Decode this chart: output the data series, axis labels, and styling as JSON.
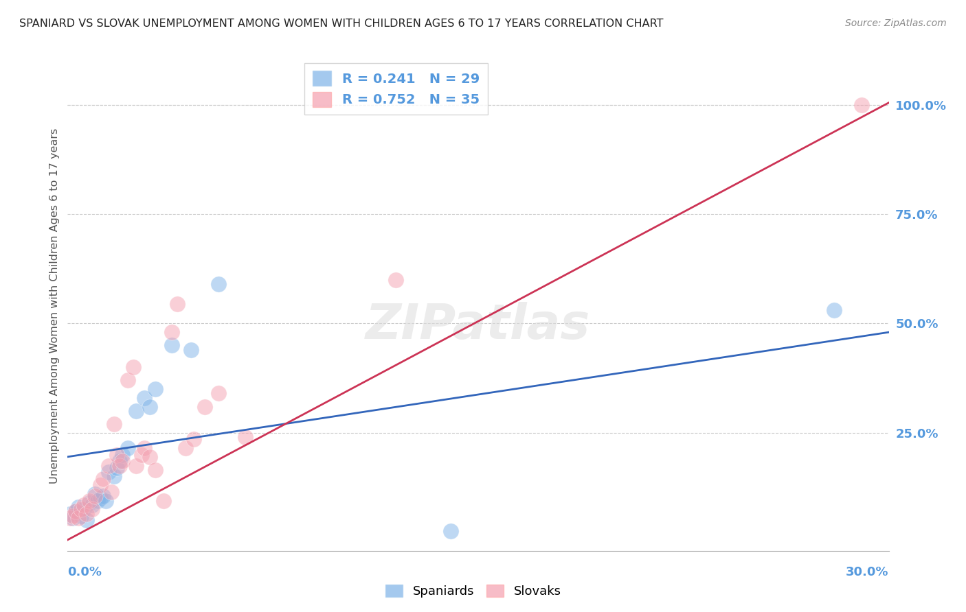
{
  "title": "SPANIARD VS SLOVAK UNEMPLOYMENT AMONG WOMEN WITH CHILDREN AGES 6 TO 17 YEARS CORRELATION CHART",
  "source": "Source: ZipAtlas.com",
  "ylabel": "Unemployment Among Women with Children Ages 6 to 17 years",
  "watermark": "ZIPatlas",
  "legend_spaniard_R": "0.241",
  "legend_spaniard_N": "29",
  "legend_slovak_R": "0.752",
  "legend_slovak_N": "35",
  "blue_color": "#7EB3E8",
  "pink_color": "#F4A0B0",
  "blue_line_color": "#3366BB",
  "pink_line_color": "#CC3355",
  "axis_label_color": "#5599DD",
  "title_color": "#222222",
  "grid_color": "#CCCCCC",
  "spaniard_x": [
    0.001,
    0.002,
    0.003,
    0.004,
    0.005,
    0.006,
    0.007,
    0.008,
    0.009,
    0.01,
    0.011,
    0.012,
    0.013,
    0.014,
    0.015,
    0.017,
    0.018,
    0.019,
    0.02,
    0.022,
    0.025,
    0.028,
    0.03,
    0.032,
    0.038,
    0.045,
    0.055,
    0.14,
    0.28
  ],
  "spaniard_y": [
    0.065,
    0.055,
    0.07,
    0.08,
    0.06,
    0.075,
    0.05,
    0.09,
    0.085,
    0.11,
    0.095,
    0.1,
    0.105,
    0.095,
    0.16,
    0.15,
    0.17,
    0.185,
    0.2,
    0.215,
    0.3,
    0.33,
    0.31,
    0.35,
    0.45,
    0.44,
    0.59,
    0.025,
    0.53
  ],
  "slovak_x": [
    0.001,
    0.002,
    0.003,
    0.004,
    0.005,
    0.006,
    0.007,
    0.008,
    0.009,
    0.01,
    0.012,
    0.013,
    0.015,
    0.016,
    0.017,
    0.018,
    0.019,
    0.02,
    0.022,
    0.024,
    0.025,
    0.027,
    0.028,
    0.03,
    0.032,
    0.035,
    0.038,
    0.04,
    0.043,
    0.046,
    0.05,
    0.055,
    0.065,
    0.12,
    0.29
  ],
  "slovak_y": [
    0.055,
    0.06,
    0.07,
    0.055,
    0.075,
    0.085,
    0.065,
    0.095,
    0.075,
    0.105,
    0.13,
    0.145,
    0.175,
    0.115,
    0.27,
    0.2,
    0.175,
    0.185,
    0.37,
    0.4,
    0.175,
    0.2,
    0.215,
    0.195,
    0.165,
    0.095,
    0.48,
    0.545,
    0.215,
    0.235,
    0.31,
    0.34,
    0.24,
    0.6,
    1.0
  ],
  "spaniard_line_x0": 0.0,
  "spaniard_line_x1": 0.3,
  "spaniard_line_y0": 0.195,
  "spaniard_line_y1": 0.48,
  "slovak_line_x0": 0.0,
  "slovak_line_x1": 0.3,
  "slovak_line_y0": 0.005,
  "slovak_line_y1": 1.005,
  "xlim_min": 0.0,
  "xlim_max": 0.3,
  "ylim_min": -0.02,
  "ylim_max": 1.1,
  "yticks": [
    0.0,
    0.25,
    0.5,
    0.75,
    1.0
  ],
  "ytick_labels": [
    "",
    "25.0%",
    "50.0%",
    "75.0%",
    "100.0%"
  ]
}
